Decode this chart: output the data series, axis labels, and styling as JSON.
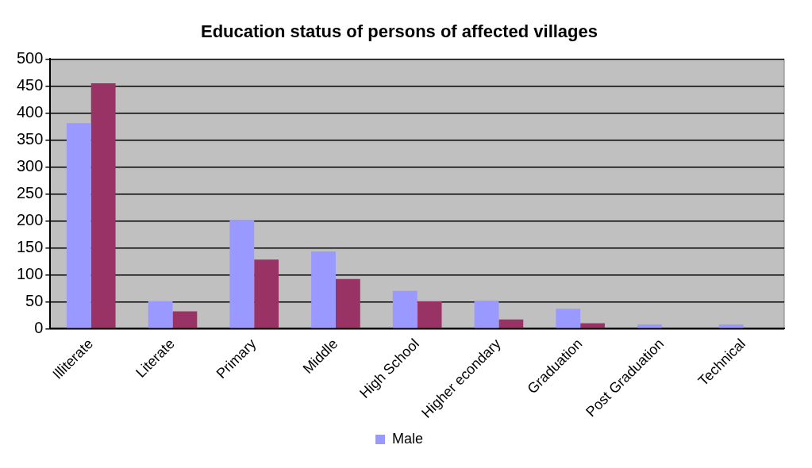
{
  "chart_data": {
    "type": "bar",
    "title": "Education status of persons of affected villages",
    "categories": [
      "Illiterate",
      "Literate",
      "Primary",
      "Middle",
      "High School",
      "Higher econdary",
      "Graduation",
      "Post Graduation",
      "Technical"
    ],
    "series": [
      {
        "name": "Male",
        "color": "#9999ff",
        "values": [
          381,
          51,
          202,
          143,
          70,
          52,
          37,
          8,
          8
        ]
      },
      {
        "color": "#993366",
        "values": [
          455,
          32,
          128,
          92,
          51,
          17,
          10,
          null,
          null
        ]
      }
    ],
    "ylim": [
      0,
      500
    ],
    "yticks": [
      0,
      50,
      100,
      150,
      200,
      250,
      300,
      350,
      400,
      450,
      500
    ],
    "grid": "y",
    "legend": "bottom"
  }
}
